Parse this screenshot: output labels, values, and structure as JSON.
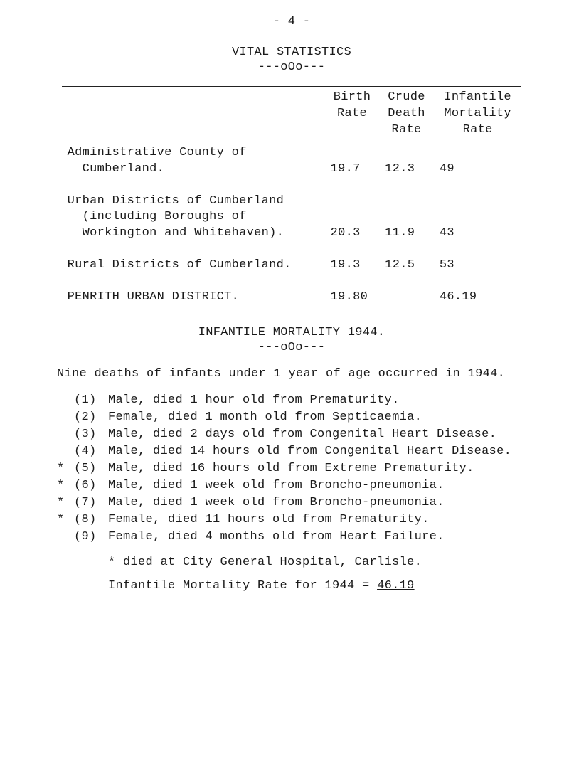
{
  "page_number": "- 4 -",
  "title": "VITAL STATISTICS",
  "separator": "---oOo---",
  "table": {
    "headers": {
      "c1": "",
      "c2_l1": "Birth",
      "c2_l2": "Rate",
      "c3_l1": "Crude",
      "c3_l2": "Death",
      "c3_l3": "Rate",
      "c4_l1": "Infantile",
      "c4_l2": "Mortality",
      "c4_l3": "Rate"
    },
    "rows": [
      {
        "label_l1": "Administrative County of",
        "label_l2": "Cumberland.",
        "birth": "19.7",
        "death": "12.3",
        "infant": "49"
      },
      {
        "label_l1": "Urban Districts of Cumberland",
        "label_l2": "(including Boroughs of",
        "label_l3": "Workington and Whitehaven).",
        "birth": "20.3",
        "death": "11.9",
        "infant": "43"
      },
      {
        "label_l1": "Rural Districts of Cumberland.",
        "birth": "19.3",
        "death": "12.5",
        "infant": "53"
      },
      {
        "label_l1": "PENRITH URBAN DISTRICT.",
        "birth": "19.80",
        "death": "",
        "infant": "46.19"
      }
    ]
  },
  "section2_title": "INFANTILE MORTALITY 1944.",
  "intro": "Nine deaths of infants under 1 year of age occurred in 1944.",
  "deaths": [
    {
      "mark": "",
      "num": "(1)",
      "text": "Male, died 1 hour old from Prematurity."
    },
    {
      "mark": "",
      "num": "(2)",
      "text": "Female, died 1 month old from Septicaemia."
    },
    {
      "mark": "",
      "num": "(3)",
      "text": "Male, died 2 days old from Congenital Heart Disease."
    },
    {
      "mark": "",
      "num": "(4)",
      "text": "Male, died 14 hours old from Congenital Heart Disease."
    },
    {
      "mark": "*",
      "num": "(5)",
      "text": "Male, died 16 hours old from Extreme Prematurity."
    },
    {
      "mark": "*",
      "num": "(6)",
      "text": "Male, died 1 week old from Broncho-pneumonia."
    },
    {
      "mark": "*",
      "num": "(7)",
      "text": "Male, died 1 week old from Broncho-pneumonia."
    },
    {
      "mark": "*",
      "num": "(8)",
      "text": "Female, died 11 hours old from Prematurity."
    },
    {
      "mark": "",
      "num": "(9)",
      "text": "Female, died 4 months old from Heart Failure."
    }
  ],
  "footnote": "* died at City General Hospital, Carlisle.",
  "infantile_line_pre": "Infantile Mortality Rate for 1944  =  ",
  "infantile_value": "46.19"
}
